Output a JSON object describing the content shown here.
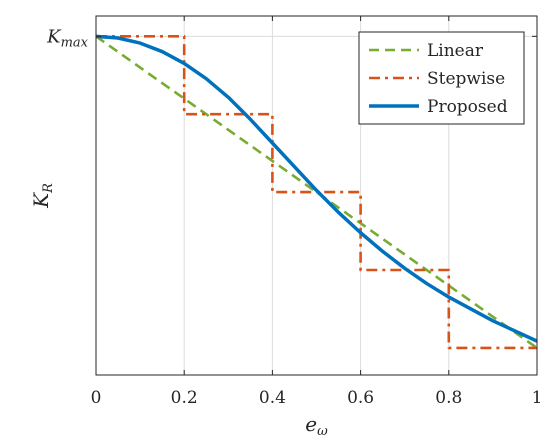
{
  "chart_data": {
    "type": "line",
    "title": "",
    "xlabel": {
      "main": "e",
      "sub": "ω"
    },
    "ylabel": {
      "main": "K",
      "sub": "R"
    },
    "xlim": [
      0,
      1
    ],
    "ylim": [
      0,
      1.06
    ],
    "x_ticks": [
      {
        "value": 0,
        "label": "0"
      },
      {
        "value": 0.2,
        "label": "0.2"
      },
      {
        "value": 0.4,
        "label": "0.4"
      },
      {
        "value": 0.6,
        "label": "0.6"
      },
      {
        "value": 0.8,
        "label": "0.8"
      },
      {
        "value": 1,
        "label": "1"
      }
    ],
    "y_ticks": [
      {
        "value": 1,
        "main": "K",
        "sub": "max"
      }
    ],
    "grid": true,
    "legend_position": "top-right",
    "series": [
      {
        "name": "Linear",
        "color": "#77AC30",
        "style": "dashed",
        "x": [
          0,
          1
        ],
        "y": [
          1,
          0.08
        ]
      },
      {
        "name": "Stepwise",
        "color": "#D95319",
        "style": "dashdot",
        "x": [
          0,
          0.2,
          0.2,
          0.4,
          0.4,
          0.6,
          0.6,
          0.8,
          0.8,
          1
        ],
        "y": [
          1,
          1,
          0.77,
          0.77,
          0.54,
          0.54,
          0.31,
          0.31,
          0.08,
          0.08
        ]
      },
      {
        "name": "Proposed",
        "color": "#0072BD",
        "style": "solid",
        "x": [
          0,
          0.05,
          0.1,
          0.15,
          0.2,
          0.25,
          0.3,
          0.35,
          0.4,
          0.45,
          0.5,
          0.55,
          0.6,
          0.65,
          0.7,
          0.75,
          0.8,
          0.85,
          0.9,
          0.95,
          1
        ],
        "y": [
          1,
          0.995,
          0.98,
          0.955,
          0.92,
          0.875,
          0.82,
          0.755,
          0.685,
          0.615,
          0.545,
          0.48,
          0.42,
          0.365,
          0.315,
          0.27,
          0.23,
          0.195,
          0.16,
          0.13,
          0.1
        ]
      }
    ]
  }
}
